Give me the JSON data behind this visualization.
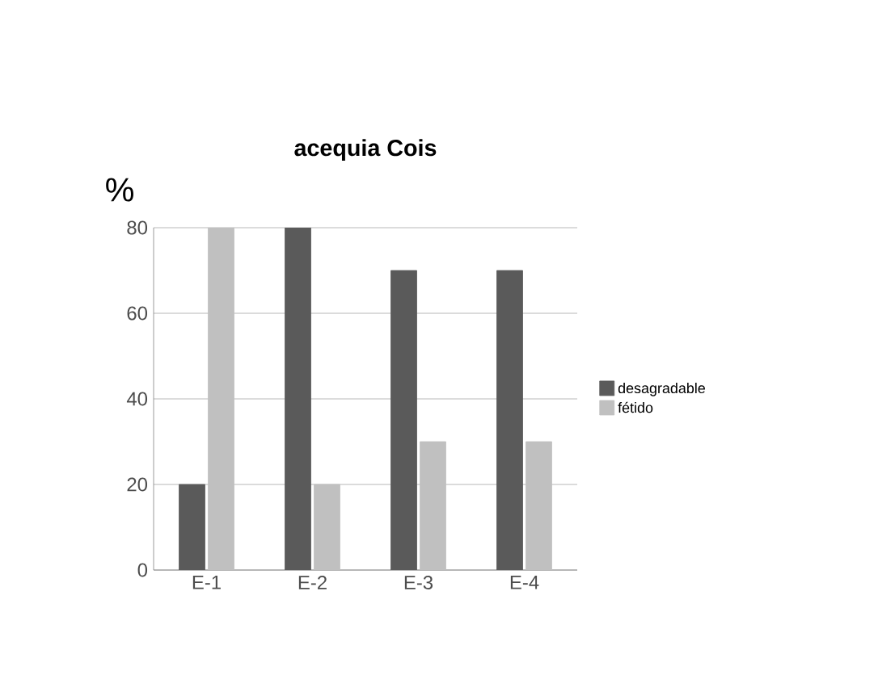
{
  "chart_data": {
    "type": "bar",
    "title": "acequia  Cois",
    "ylabel": "%",
    "categories": [
      "E-1",
      "E-2",
      "E-3",
      "E-4"
    ],
    "series": [
      {
        "name": "desagradable",
        "color": "#5a5a5a",
        "values": [
          20,
          80,
          70,
          70
        ]
      },
      {
        "name": "fétido",
        "color": "#c0c0c0",
        "values": [
          80,
          20,
          30,
          30
        ]
      }
    ],
    "ylim": [
      0,
      80
    ],
    "yticks": [
      0,
      20,
      40,
      60,
      80
    ],
    "grid": "y",
    "legend": "right"
  }
}
